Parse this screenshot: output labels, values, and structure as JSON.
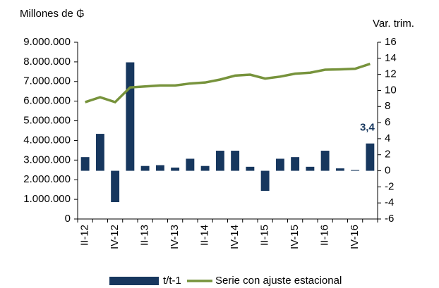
{
  "chart_data": {
    "type": "bar-line",
    "y_label": "Millones de ₲",
    "y2_label": "Var. trim.",
    "categories": [
      "II-12",
      null,
      "IV-12",
      null,
      "II-13",
      null,
      "IV-13",
      null,
      "II-14",
      null,
      "IV-14",
      null,
      "II-15",
      null,
      "IV-15",
      null,
      "II-16",
      null,
      "IV-16",
      null
    ],
    "series": [
      {
        "name": "t/t-1",
        "type": "bar",
        "axis": "y2",
        "color": "#17375e",
        "values": [
          1.7,
          4.6,
          -3.9,
          13.5,
          0.6,
          0.7,
          0.4,
          1.5,
          0.6,
          2.5,
          2.5,
          0.5,
          -2.5,
          1.5,
          1.7,
          0.5,
          2.5,
          0.3,
          0.1,
          3.4
        ],
        "value_labels": [
          null,
          null,
          null,
          null,
          null,
          null,
          null,
          null,
          null,
          null,
          null,
          null,
          null,
          null,
          null,
          null,
          null,
          null,
          null,
          "3,4"
        ]
      },
      {
        "name": "Serie con ajuste estacional",
        "type": "line",
        "axis": "y",
        "color": "#77933c",
        "values": [
          5950000,
          6200000,
          5950000,
          6700000,
          6750000,
          6800000,
          6800000,
          6900000,
          6950000,
          7100000,
          7300000,
          7350000,
          7150000,
          7250000,
          7400000,
          7450000,
          7600000,
          7620000,
          7650000,
          7900000
        ]
      }
    ],
    "ylim": [
      0,
      9000000
    ],
    "yticks": [
      0,
      {
        "value": 1000000,
        "label": "1.000.000"
      },
      {
        "value": 2000000,
        "label": "2.000.000"
      },
      {
        "value": 3000000,
        "label": "3.000.000"
      },
      {
        "value": 4000000,
        "label": "4.000.000"
      },
      {
        "value": 5000000,
        "label": "5.000.000"
      },
      {
        "value": 6000000,
        "label": "6.000.000"
      },
      {
        "value": 7000000,
        "label": "7.000.000"
      },
      {
        "value": 8000000,
        "label": "8.000.000"
      },
      {
        "value": 9000000,
        "label": "9.000.000"
      }
    ],
    "y2lim": [
      -6,
      16
    ],
    "y2ticks": [
      -6,
      -4,
      -2,
      0,
      2,
      4,
      6,
      8,
      10,
      12,
      14,
      16
    ],
    "grid": false,
    "legend": "bottom"
  }
}
